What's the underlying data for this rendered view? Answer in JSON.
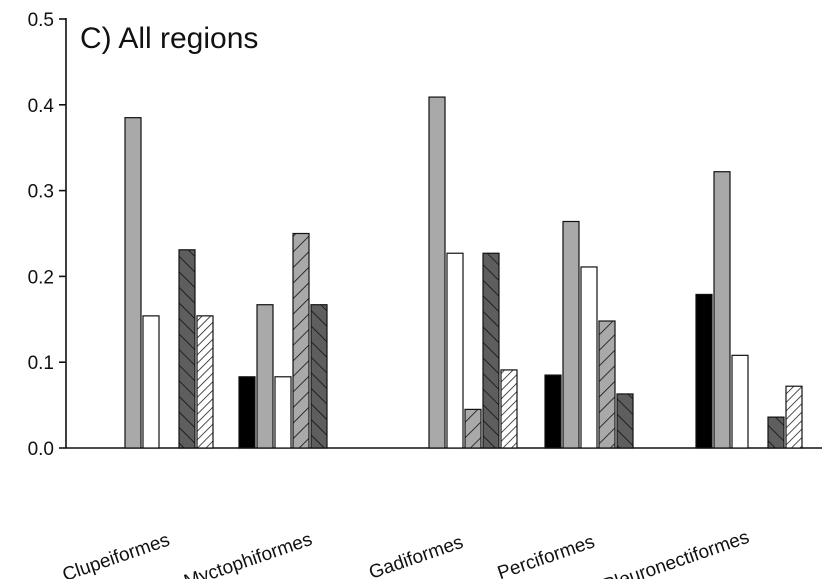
{
  "chart_data": {
    "type": "bar",
    "title": "C) All regions",
    "xlabel": "",
    "ylabel": "",
    "ylim": [
      0,
      0.5
    ],
    "yticks": [
      "0.0",
      "0.1",
      "0.2",
      "0.3",
      "0.4",
      "0.5"
    ],
    "grid": false,
    "legend": "none",
    "categories": [
      "Clupeiformes",
      "Myctophiformes",
      "Gadiformes",
      "Perciformes",
      "Pleuronectiformes"
    ],
    "series": [
      {
        "fill": "#000000",
        "pattern": "solid",
        "values": [
          0,
          0.083,
          0,
          0.085,
          0.179
        ]
      },
      {
        "fill": "#a9a9a9",
        "pattern": "solid",
        "values": [
          0.385,
          0.167,
          0.409,
          0.264,
          0.322
        ]
      },
      {
        "fill": "#ffffff",
        "pattern": "solid",
        "values": [
          0.154,
          0.083,
          0.227,
          0.211,
          0.108
        ]
      },
      {
        "fill": "#a9a9a9",
        "pattern": "hatch-forward",
        "values": [
          0,
          0.25,
          0.045,
          0.148,
          0
        ]
      },
      {
        "fill": "#5e5e5e",
        "pattern": "hatch-back",
        "values": [
          0.231,
          0.167,
          0.227,
          0.063,
          0.036
        ]
      },
      {
        "fill": "#ffffff",
        "pattern": "hatch-forward-dense",
        "values": [
          0.154,
          0,
          0.091,
          0,
          0.072
        ]
      }
    ]
  }
}
